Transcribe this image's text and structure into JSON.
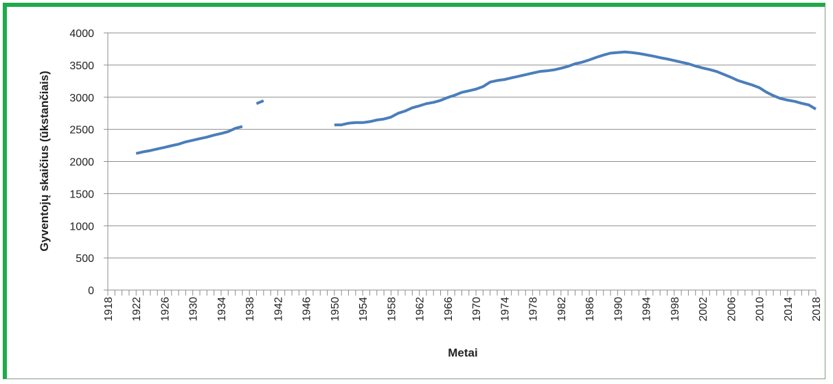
{
  "chart_data": {
    "type": "line",
    "title": "",
    "xlabel": "Metai",
    "ylabel": "Gyventojų skaičius (ūkstančiais)",
    "xlim": [
      1918,
      2018
    ],
    "ylim": [
      0,
      4000
    ],
    "x_ticks": [
      1918,
      1922,
      1926,
      1930,
      1934,
      1938,
      1942,
      1946,
      1950,
      1954,
      1958,
      1962,
      1966,
      1970,
      1974,
      1978,
      1982,
      1986,
      1990,
      1994,
      1998,
      2002,
      2006,
      2010,
      2014,
      2018
    ],
    "y_ticks": [
      0,
      500,
      1000,
      1500,
      2000,
      2500,
      3000,
      3500,
      4000
    ],
    "grid": "horizontal",
    "legend": "none",
    "color": "#4a7ebb",
    "series": [
      {
        "points": [
          [
            1922,
            2125
          ],
          [
            1923,
            2150
          ],
          [
            1924,
            2170
          ],
          [
            1925,
            2195
          ],
          [
            1926,
            2220
          ],
          [
            1927,
            2245
          ],
          [
            1928,
            2270
          ],
          [
            1929,
            2305
          ],
          [
            1930,
            2330
          ],
          [
            1931,
            2355
          ],
          [
            1932,
            2380
          ],
          [
            1933,
            2410
          ],
          [
            1934,
            2435
          ],
          [
            1935,
            2465
          ],
          [
            1936,
            2515
          ],
          [
            1937,
            2545
          ],
          null,
          [
            1939,
            2900
          ],
          [
            1940,
            2945
          ],
          null,
          [
            1950,
            2570
          ],
          [
            1951,
            2570
          ],
          [
            1952,
            2595
          ],
          [
            1953,
            2605
          ],
          [
            1954,
            2605
          ],
          [
            1955,
            2620
          ],
          [
            1956,
            2645
          ],
          [
            1957,
            2660
          ],
          [
            1958,
            2690
          ],
          [
            1959,
            2750
          ],
          [
            1960,
            2785
          ],
          [
            1961,
            2835
          ],
          [
            1962,
            2865
          ],
          [
            1963,
            2900
          ],
          [
            1964,
            2920
          ],
          [
            1965,
            2950
          ],
          [
            1966,
            2995
          ],
          [
            1967,
            3030
          ],
          [
            1968,
            3075
          ],
          [
            1969,
            3100
          ],
          [
            1970,
            3125
          ],
          [
            1971,
            3165
          ],
          [
            1972,
            3235
          ],
          [
            1973,
            3260
          ],
          [
            1974,
            3275
          ],
          [
            1975,
            3300
          ],
          [
            1976,
            3325
          ],
          [
            1977,
            3350
          ],
          [
            1978,
            3375
          ],
          [
            1979,
            3400
          ],
          [
            1980,
            3410
          ],
          [
            1981,
            3425
          ],
          [
            1982,
            3450
          ],
          [
            1983,
            3480
          ],
          [
            1984,
            3520
          ],
          [
            1985,
            3545
          ],
          [
            1986,
            3580
          ],
          [
            1987,
            3620
          ],
          [
            1988,
            3655
          ],
          [
            1989,
            3685
          ],
          [
            1990,
            3695
          ],
          [
            1991,
            3705
          ],
          [
            1992,
            3695
          ],
          [
            1993,
            3680
          ],
          [
            1994,
            3660
          ],
          [
            1995,
            3640
          ],
          [
            1996,
            3615
          ],
          [
            1997,
            3595
          ],
          [
            1998,
            3570
          ],
          [
            1999,
            3545
          ],
          [
            2000,
            3520
          ],
          [
            2001,
            3485
          ],
          [
            2002,
            3455
          ],
          [
            2003,
            3430
          ],
          [
            2004,
            3400
          ],
          [
            2005,
            3355
          ],
          [
            2006,
            3310
          ],
          [
            2007,
            3260
          ],
          [
            2008,
            3225
          ],
          [
            2009,
            3190
          ],
          [
            2010,
            3150
          ],
          [
            2011,
            3080
          ],
          [
            2012,
            3025
          ],
          [
            2013,
            2980
          ],
          [
            2014,
            2955
          ],
          [
            2015,
            2935
          ],
          [
            2016,
            2905
          ],
          [
            2017,
            2880
          ],
          [
            2018,
            2815
          ]
        ]
      }
    ]
  }
}
